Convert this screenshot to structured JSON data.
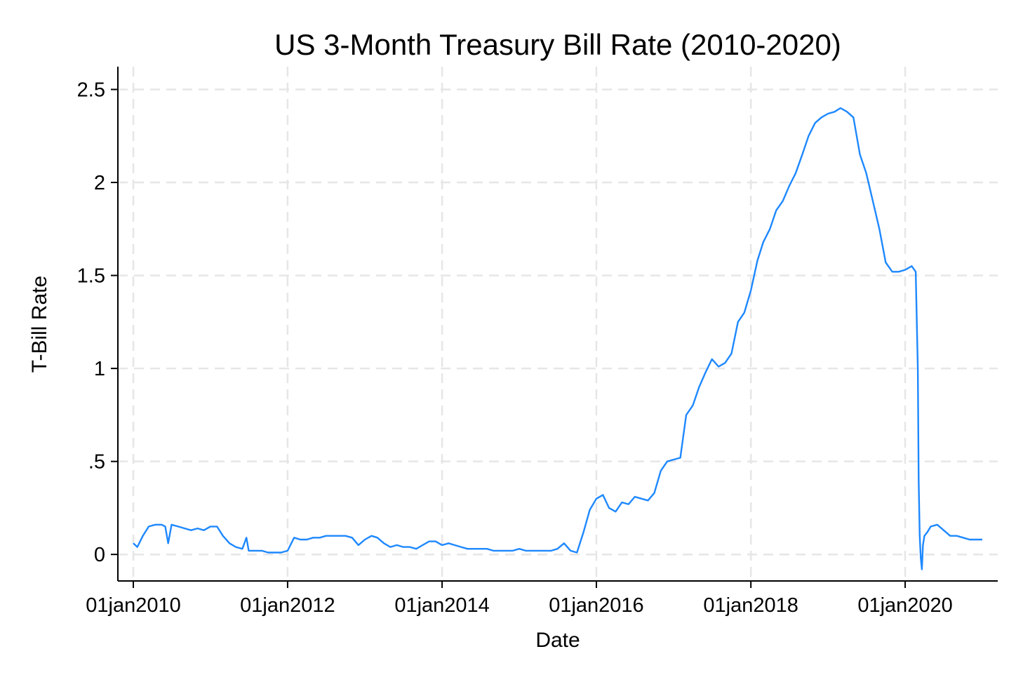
{
  "chart_data": {
    "type": "line",
    "title": "US 3-Month Treasury Bill Rate (2010-2020)",
    "xlabel": "Date",
    "ylabel": "T-Bill Rate",
    "x_axis_type": "date",
    "xlim": [
      "2010-01-01",
      "2020-12-31"
    ],
    "ylim": [
      -0.12,
      2.6
    ],
    "x_ticks": [
      {
        "value": "2010-01-01",
        "label": "01jan2010"
      },
      {
        "value": "2012-01-01",
        "label": "01jan2012"
      },
      {
        "value": "2014-01-01",
        "label": "01jan2014"
      },
      {
        "value": "2016-01-01",
        "label": "01jan2016"
      },
      {
        "value": "2018-01-01",
        "label": "01jan2018"
      },
      {
        "value": "2020-01-01",
        "label": "01jan2020"
      }
    ],
    "y_ticks": [
      {
        "value": 0,
        "label": "0"
      },
      {
        "value": 0.5,
        "label": ".5"
      },
      {
        "value": 1,
        "label": "1"
      },
      {
        "value": 1.5,
        "label": "1.5"
      },
      {
        "value": 2,
        "label": "2"
      },
      {
        "value": 2.5,
        "label": "2.5"
      }
    ],
    "grid": true,
    "legend": false,
    "series": [
      {
        "color": "#1e88ff",
        "x": [
          "2010-01-01",
          "2010-01-20",
          "2010-02-15",
          "2010-03-15",
          "2010-04-15",
          "2010-05-15",
          "2010-06-01",
          "2010-06-15",
          "2010-07-01",
          "2010-08-01",
          "2010-09-01",
          "2010-10-01",
          "2010-11-01",
          "2010-12-01",
          "2011-01-01",
          "2011-02-01",
          "2011-03-01",
          "2011-04-01",
          "2011-05-01",
          "2011-06-01",
          "2011-06-20",
          "2011-07-01",
          "2011-08-01",
          "2011-09-01",
          "2011-10-01",
          "2011-11-01",
          "2011-12-01",
          "2012-01-01",
          "2012-02-01",
          "2012-03-01",
          "2012-04-01",
          "2012-05-01",
          "2012-06-01",
          "2012-07-01",
          "2012-08-01",
          "2012-09-01",
          "2012-10-01",
          "2012-11-01",
          "2012-12-01",
          "2013-01-01",
          "2013-02-01",
          "2013-03-01",
          "2013-04-01",
          "2013-05-01",
          "2013-06-01",
          "2013-07-01",
          "2013-08-01",
          "2013-09-01",
          "2013-10-01",
          "2013-11-01",
          "2013-12-01",
          "2014-01-01",
          "2014-02-01",
          "2014-03-01",
          "2014-04-01",
          "2014-05-01",
          "2014-06-01",
          "2014-07-01",
          "2014-08-01",
          "2014-09-01",
          "2014-10-01",
          "2014-11-01",
          "2014-12-01",
          "2015-01-01",
          "2015-02-01",
          "2015-03-01",
          "2015-04-01",
          "2015-05-01",
          "2015-06-01",
          "2015-07-01",
          "2015-08-01",
          "2015-09-01",
          "2015-10-01",
          "2015-11-01",
          "2015-12-01",
          "2016-01-01",
          "2016-02-01",
          "2016-03-01",
          "2016-04-01",
          "2016-05-01",
          "2016-06-01",
          "2016-07-01",
          "2016-08-01",
          "2016-09-01",
          "2016-10-01",
          "2016-11-01",
          "2016-12-01",
          "2017-01-01",
          "2017-02-01",
          "2017-03-01",
          "2017-04-01",
          "2017-05-01",
          "2017-06-01",
          "2017-07-01",
          "2017-08-01",
          "2017-09-01",
          "2017-10-01",
          "2017-11-01",
          "2017-12-01",
          "2018-01-01",
          "2018-02-01",
          "2018-03-01",
          "2018-04-01",
          "2018-05-01",
          "2018-06-01",
          "2018-07-01",
          "2018-08-01",
          "2018-09-01",
          "2018-10-01",
          "2018-11-01",
          "2018-12-01",
          "2019-01-01",
          "2019-02-01",
          "2019-03-01",
          "2019-04-01",
          "2019-05-01",
          "2019-06-01",
          "2019-07-01",
          "2019-08-01",
          "2019-09-01",
          "2019-10-01",
          "2019-11-01",
          "2019-12-01",
          "2020-01-01",
          "2020-02-01",
          "2020-02-20",
          "2020-03-01",
          "2020-03-05",
          "2020-03-10",
          "2020-03-15",
          "2020-03-20",
          "2020-03-25",
          "2020-04-01",
          "2020-04-15",
          "2020-05-01",
          "2020-06-01",
          "2020-07-01",
          "2020-08-01",
          "2020-09-01",
          "2020-10-01",
          "2020-11-01",
          "2020-12-01",
          "2020-12-31"
        ],
        "y": [
          0.06,
          0.04,
          0.1,
          0.15,
          0.16,
          0.16,
          0.15,
          0.06,
          0.16,
          0.15,
          0.14,
          0.13,
          0.14,
          0.13,
          0.15,
          0.15,
          0.1,
          0.06,
          0.04,
          0.03,
          0.09,
          0.02,
          0.02,
          0.02,
          0.01,
          0.01,
          0.01,
          0.02,
          0.09,
          0.08,
          0.08,
          0.09,
          0.09,
          0.1,
          0.1,
          0.1,
          0.1,
          0.09,
          0.05,
          0.08,
          0.1,
          0.09,
          0.06,
          0.04,
          0.05,
          0.04,
          0.04,
          0.03,
          0.05,
          0.07,
          0.07,
          0.05,
          0.06,
          0.05,
          0.04,
          0.03,
          0.03,
          0.03,
          0.03,
          0.02,
          0.02,
          0.02,
          0.02,
          0.03,
          0.02,
          0.02,
          0.02,
          0.02,
          0.02,
          0.03,
          0.06,
          0.02,
          0.01,
          0.12,
          0.24,
          0.3,
          0.32,
          0.25,
          0.23,
          0.28,
          0.27,
          0.31,
          0.3,
          0.29,
          0.33,
          0.45,
          0.5,
          0.51,
          0.52,
          0.75,
          0.8,
          0.9,
          0.98,
          1.05,
          1.01,
          1.03,
          1.08,
          1.25,
          1.3,
          1.42,
          1.58,
          1.68,
          1.75,
          1.85,
          1.9,
          1.98,
          2.05,
          2.15,
          2.25,
          2.32,
          2.35,
          2.37,
          2.38,
          2.4,
          2.38,
          2.35,
          2.15,
          2.05,
          1.9,
          1.75,
          1.57,
          1.52,
          1.52,
          1.53,
          1.55,
          1.52,
          1.0,
          0.4,
          0.1,
          -0.02,
          -0.08,
          0.05,
          0.1,
          0.12,
          0.15,
          0.16,
          0.13,
          0.1,
          0.1,
          0.09,
          0.08,
          0.08,
          0.08
        ]
      }
    ]
  }
}
